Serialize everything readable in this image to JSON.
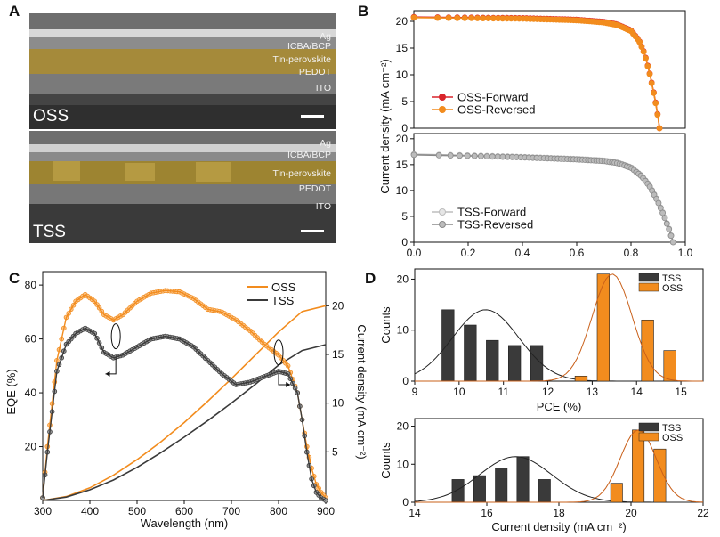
{
  "panel_letters": [
    "A",
    "B",
    "C",
    "D"
  ],
  "panel_a": {
    "top": {
      "sample": "OSS",
      "layers": [
        "Ag",
        "ICBA/BCP",
        "Tin-perovskite",
        "PEDOT",
        "ITO"
      ]
    },
    "bottom": {
      "sample": "TSS",
      "layers": [
        "Ag",
        "ICBA/BCP",
        "Tin-perovskite",
        "PEDOT",
        "ITO"
      ]
    }
  },
  "colors": {
    "oss": "#f28c1e",
    "oss_forward": "#d9242b",
    "tss": "#3a3a3a",
    "tss_forward": "#bdbdbd",
    "film": "#c9a63a"
  },
  "chart_data": [
    {
      "id": "B-top",
      "type": "line",
      "title": "",
      "xlabel": "",
      "ylabel": "Current density (mA cm⁻²)",
      "xlim": [
        0.0,
        1.0
      ],
      "ylim": [
        0,
        22
      ],
      "yticks": [
        "0",
        "5",
        "10",
        "15",
        "20"
      ],
      "series": [
        {
          "name": "OSS-Forward",
          "voc": 0.905,
          "jsc": 20.8,
          "x": [
            0.0,
            0.2,
            0.4,
            0.6,
            0.7,
            0.75,
            0.8,
            0.83,
            0.85,
            0.87,
            0.88,
            0.89,
            0.9,
            0.905
          ],
          "y": [
            20.8,
            20.7,
            20.6,
            20.3,
            19.9,
            19.4,
            18.3,
            16.4,
            14.0,
            10.0,
            7.6,
            5.0,
            2.0,
            0.0
          ]
        },
        {
          "name": "OSS-Reversed",
          "voc": 0.905,
          "jsc": 20.7,
          "x": [
            0.0,
            0.2,
            0.4,
            0.6,
            0.7,
            0.75,
            0.8,
            0.83,
            0.85,
            0.87,
            0.88,
            0.89,
            0.9,
            0.905
          ],
          "y": [
            20.7,
            20.6,
            20.5,
            20.2,
            19.8,
            19.3,
            18.2,
            16.3,
            13.9,
            9.9,
            7.5,
            4.9,
            1.9,
            0.0
          ]
        }
      ]
    },
    {
      "id": "B-bottom",
      "type": "line",
      "xlabel": "",
      "ylim": [
        0,
        21
      ],
      "xlim": [
        0.0,
        1.0
      ],
      "xticks": [
        "0.0",
        "0.2",
        "0.4",
        "0.6",
        "0.8",
        "1.0"
      ],
      "yticks": [
        "0",
        "5",
        "10",
        "15",
        "20"
      ],
      "series": [
        {
          "name": "TSS-Forward",
          "voc": 0.955,
          "jsc": 17.0,
          "x": [
            0.0,
            0.2,
            0.4,
            0.6,
            0.7,
            0.75,
            0.8,
            0.84,
            0.87,
            0.9,
            0.92,
            0.94,
            0.955
          ],
          "y": [
            17.0,
            16.8,
            16.5,
            16.1,
            15.8,
            15.4,
            14.5,
            12.8,
            10.8,
            7.8,
            5.4,
            2.6,
            0.0
          ]
        },
        {
          "name": "TSS-Reversed",
          "voc": 0.955,
          "jsc": 16.9,
          "x": [
            0.0,
            0.2,
            0.4,
            0.6,
            0.7,
            0.75,
            0.8,
            0.84,
            0.87,
            0.9,
            0.92,
            0.94,
            0.955
          ],
          "y": [
            16.9,
            16.7,
            16.4,
            16.0,
            15.7,
            15.3,
            14.4,
            12.7,
            10.7,
            7.7,
            5.3,
            2.5,
            0.0
          ]
        }
      ]
    },
    {
      "id": "C",
      "type": "line",
      "xlabel": "Wavelength (nm)",
      "ylabel": "EQE (%)",
      "ylabel_right": "Current density (mA cm⁻²)",
      "xlim": [
        300,
        900
      ],
      "ylim": [
        0,
        85
      ],
      "ylim_right": [
        0,
        23.5
      ],
      "xticks": [
        "300",
        "400",
        "500",
        "600",
        "700",
        "800",
        "900"
      ],
      "yticks": [
        "20",
        "40",
        "60",
        "80"
      ],
      "yticks_right": [
        "5",
        "10",
        "15",
        "20"
      ],
      "series": [
        {
          "name": "OSS",
          "axis": "left",
          "x": [
            300,
            310,
            330,
            350,
            370,
            390,
            410,
            430,
            450,
            470,
            500,
            530,
            560,
            590,
            620,
            650,
            680,
            710,
            740,
            770,
            800,
            820,
            840,
            850,
            860,
            870,
            880,
            890,
            900
          ],
          "y": [
            1,
            20,
            52,
            68,
            74,
            76.5,
            74,
            69,
            67,
            69,
            74,
            77,
            78,
            77.5,
            75,
            71,
            70,
            67,
            63,
            58,
            54,
            50,
            40,
            30,
            20,
            12,
            6,
            3,
            1
          ]
        },
        {
          "name": "TSS",
          "axis": "left",
          "x": [
            300,
            310,
            330,
            350,
            370,
            390,
            410,
            430,
            450,
            470,
            500,
            530,
            560,
            590,
            620,
            650,
            680,
            710,
            740,
            770,
            800,
            820,
            840,
            850,
            860,
            870,
            880,
            890,
            900
          ],
          "y": [
            1,
            18,
            48,
            58,
            62,
            64,
            62,
            55,
            53,
            54,
            57,
            60,
            61,
            60,
            57,
            52,
            47,
            43,
            44,
            46,
            48,
            47,
            40,
            30,
            18,
            8,
            3,
            1,
            0
          ]
        },
        {
          "name": "OSS integrated",
          "axis": "right",
          "x": [
            300,
            350,
            400,
            450,
            500,
            550,
            600,
            650,
            700,
            750,
            800,
            850,
            900
          ],
          "y": [
            0,
            0.4,
            1.3,
            2.6,
            4.2,
            6.0,
            8.0,
            10.2,
            12.5,
            14.9,
            17.3,
            19.4,
            20.0
          ]
        },
        {
          "name": "TSS integrated",
          "axis": "right",
          "x": [
            300,
            350,
            400,
            450,
            500,
            550,
            600,
            650,
            700,
            750,
            800,
            850,
            900
          ],
          "y": [
            0,
            0.35,
            1.1,
            2.1,
            3.4,
            4.9,
            6.5,
            8.2,
            10.0,
            11.9,
            13.9,
            15.4,
            16.0
          ]
        }
      ],
      "legend": [
        "OSS",
        "TSS"
      ]
    },
    {
      "id": "D-top",
      "type": "bar",
      "xlabel": "PCE (%)",
      "ylabel": "Counts",
      "xlim": [
        9,
        15.5
      ],
      "ylim": [
        0,
        22
      ],
      "xticks": [
        "9",
        "10",
        "11",
        "12",
        "13",
        "14",
        "15"
      ],
      "yticks": [
        "0",
        "10",
        "20"
      ],
      "series": [
        {
          "name": "TSS",
          "x": [
            9.75,
            10.25,
            10.75,
            11.25,
            11.75
          ],
          "values": [
            14,
            11,
            8,
            7,
            7
          ],
          "fit_mean": 10.6,
          "fit_sd": 0.75,
          "fit_peak": 14
        },
        {
          "name": "OSS",
          "x": [
            12.75,
            13.25,
            13.75,
            14.25,
            14.75
          ],
          "values": [
            1,
            21,
            0,
            12,
            6
          ],
          "fit_mean": 13.45,
          "fit_sd": 0.45,
          "fit_peak": 21
        }
      ],
      "legend": [
        "TSS",
        "OSS"
      ]
    },
    {
      "id": "D-bottom",
      "type": "bar",
      "xlabel": "Current density (mA cm⁻²)",
      "ylabel": "Counts",
      "xlim": [
        14,
        22
      ],
      "ylim": [
        0,
        22
      ],
      "xticks": [
        "14",
        "16",
        "18",
        "20",
        "22"
      ],
      "yticks": [
        "0",
        "10",
        "20"
      ],
      "series": [
        {
          "name": "TSS",
          "x": [
            15.2,
            15.8,
            16.4,
            17.0,
            17.6
          ],
          "values": [
            6,
            7,
            9,
            12,
            6
          ],
          "fit_mean": 16.8,
          "fit_sd": 1.0,
          "fit_peak": 12
        },
        {
          "name": "OSS",
          "x": [
            19.6,
            20.2,
            20.8
          ],
          "values": [
            5,
            19,
            14
          ],
          "fit_mean": 20.2,
          "fit_sd": 0.5,
          "fit_peak": 19
        }
      ],
      "legend": [
        "TSS",
        "OSS"
      ]
    }
  ]
}
